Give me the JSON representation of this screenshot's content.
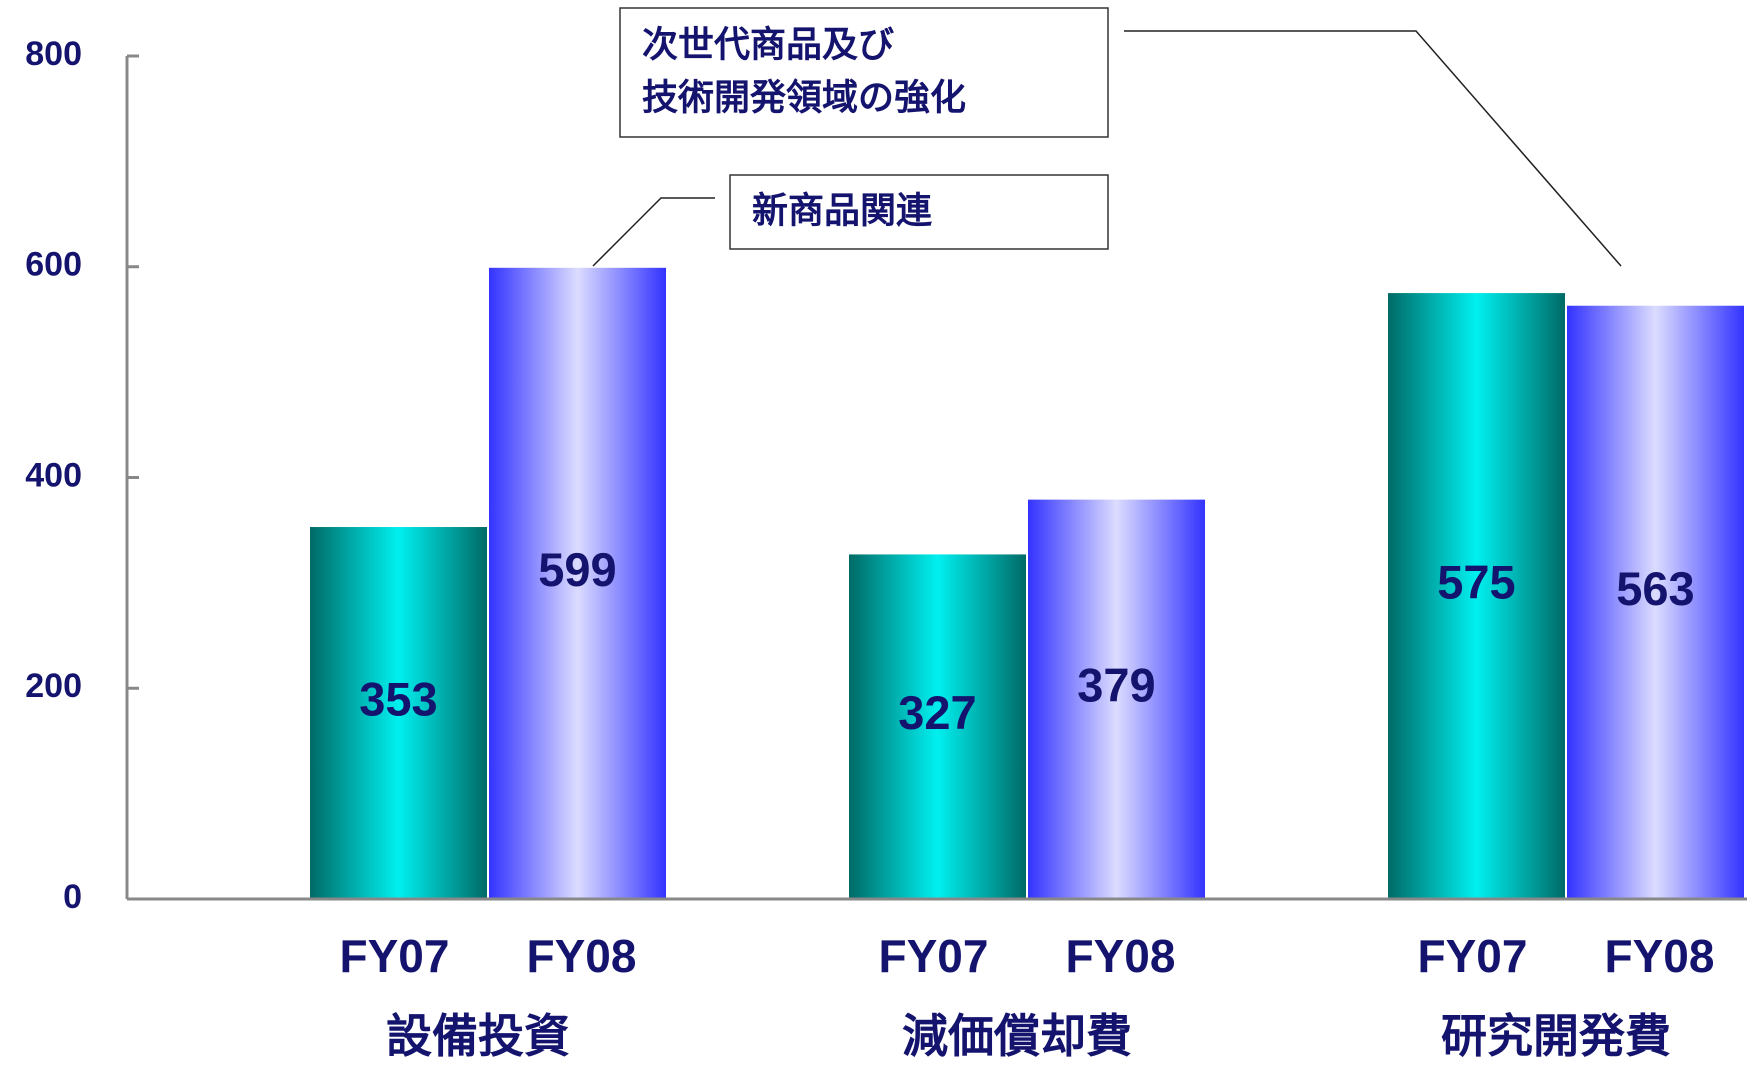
{
  "chart_data": {
    "type": "bar",
    "categories": [
      "設備投資",
      "減価償却費",
      "研究開発費"
    ],
    "series": [
      {
        "name": "FY07",
        "color": "#00f0f0",
        "values": [
          353,
          327,
          575
        ]
      },
      {
        "name": "FY08",
        "color": "#3333ff",
        "values": [
          599,
          379,
          563
        ]
      }
    ],
    "ylim": [
      0,
      800
    ],
    "yticks": [
      0,
      200,
      400,
      600,
      800
    ],
    "grid": false,
    "annotations": [
      [
        "次世代商品及び",
        "技術開発領域の強化"
      ],
      [
        "新商品関連"
      ]
    ]
  }
}
